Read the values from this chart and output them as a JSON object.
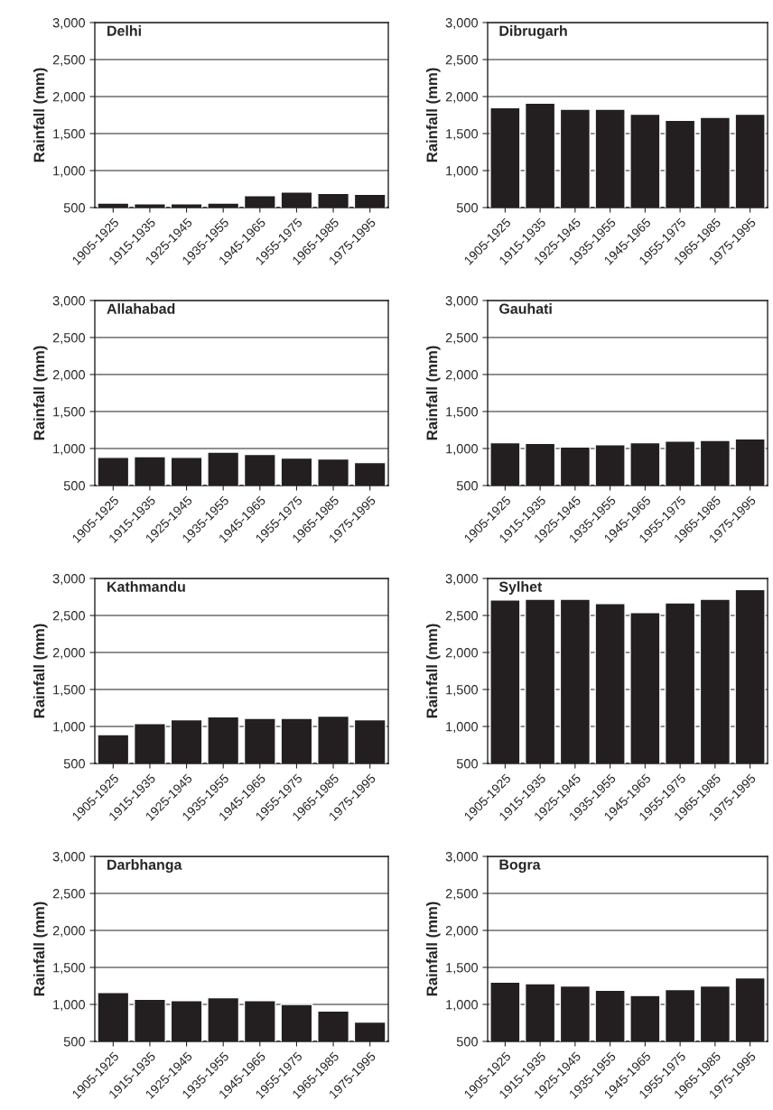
{
  "chart_data": [
    {
      "type": "bar",
      "title": "Delhi",
      "ylabel": "Rainfall (mm)",
      "categories": [
        "1905-1925",
        "1915-1935",
        "1925-1945",
        "1935-1955",
        "1945-1965",
        "1955-1975",
        "1965-1985",
        "1975-1995"
      ],
      "values": [
        560,
        550,
        550,
        560,
        660,
        710,
        690,
        680
      ],
      "color": "#231f20",
      "ylim": [
        500,
        3000
      ],
      "yticks": [
        {
          "value": 500,
          "label": "500"
        },
        {
          "value": 1000,
          "label": "1,000"
        },
        {
          "value": 1500,
          "label": "1,500"
        },
        {
          "value": 2000,
          "label": "2,000"
        },
        {
          "value": 2500,
          "label": "2,500"
        },
        {
          "value": 3000,
          "label": "3,000"
        }
      ],
      "grid": "y"
    },
    {
      "type": "bar",
      "title": "Dibrugarh",
      "ylabel": "Rainfall (mm)",
      "categories": [
        "1905-1925",
        "1915-1935",
        "1925-1945",
        "1935-1955",
        "1945-1965",
        "1955-1975",
        "1965-1985",
        "1975-1995"
      ],
      "values": [
        1850,
        1910,
        1830,
        1830,
        1760,
        1680,
        1720,
        1760
      ],
      "color": "#231f20",
      "ylim": [
        500,
        3000
      ],
      "yticks": [
        {
          "value": 500,
          "label": "500"
        },
        {
          "value": 1000,
          "label": "1,000"
        },
        {
          "value": 1500,
          "label": "1,500"
        },
        {
          "value": 2000,
          "label": "2,000"
        },
        {
          "value": 2500,
          "label": "2,500"
        },
        {
          "value": 3000,
          "label": "3,000"
        }
      ],
      "grid": "y"
    },
    {
      "type": "bar",
      "title": "Allahabad",
      "ylabel": "Rainfall (mm)",
      "categories": [
        "1905-1925",
        "1915-1935",
        "1925-1945",
        "1935-1955",
        "1945-1965",
        "1955-1975",
        "1965-1985",
        "1975-1995"
      ],
      "values": [
        880,
        890,
        880,
        950,
        920,
        870,
        860,
        810
      ],
      "color": "#231f20",
      "ylim": [
        500,
        3000
      ],
      "yticks": [
        {
          "value": 500,
          "label": "500"
        },
        {
          "value": 1000,
          "label": "1,000"
        },
        {
          "value": 1500,
          "label": "1,500"
        },
        {
          "value": 2000,
          "label": "2,000"
        },
        {
          "value": 2500,
          "label": "2,500"
        },
        {
          "value": 3000,
          "label": "3,000"
        }
      ],
      "grid": "y"
    },
    {
      "type": "bar",
      "title": "Gauhati",
      "ylabel": "Rainfall (mm)",
      "categories": [
        "1905-1925",
        "1915-1935",
        "1925-1945",
        "1935-1955",
        "1945-1965",
        "1955-1975",
        "1965-1985",
        "1975-1995"
      ],
      "values": [
        1080,
        1070,
        1020,
        1050,
        1080,
        1100,
        1110,
        1130
      ],
      "color": "#231f20",
      "ylim": [
        500,
        3000
      ],
      "yticks": [
        {
          "value": 500,
          "label": "500"
        },
        {
          "value": 1000,
          "label": "1,000"
        },
        {
          "value": 1500,
          "label": "1,500"
        },
        {
          "value": 2000,
          "label": "2,000"
        },
        {
          "value": 2500,
          "label": "2,500"
        },
        {
          "value": 3000,
          "label": "3,000"
        }
      ],
      "grid": "y"
    },
    {
      "type": "bar",
      "title": "Kathmandu",
      "ylabel": "Rainfall (mm)",
      "categories": [
        "1905-1925",
        "1915-1935",
        "1925-1945",
        "1935-1955",
        "1945-1965",
        "1955-1975",
        "1965-1985",
        "1975-1995"
      ],
      "values": [
        890,
        1040,
        1090,
        1130,
        1110,
        1110,
        1140,
        1090
      ],
      "color": "#231f20",
      "ylim": [
        500,
        3000
      ],
      "yticks": [
        {
          "value": 500,
          "label": "500"
        },
        {
          "value": 1000,
          "label": "1,000"
        },
        {
          "value": 1500,
          "label": "1,500"
        },
        {
          "value": 2000,
          "label": "2,000"
        },
        {
          "value": 2500,
          "label": "2,500"
        },
        {
          "value": 3000,
          "label": "3,000"
        }
      ],
      "grid": "y"
    },
    {
      "type": "bar",
      "title": "Sylhet",
      "ylabel": "Rainfall (mm)",
      "categories": [
        "1905-1925",
        "1915-1935",
        "1925-1945",
        "1935-1955",
        "1945-1965",
        "1955-1975",
        "1965-1985",
        "1975-1995"
      ],
      "values": [
        2710,
        2720,
        2720,
        2660,
        2540,
        2670,
        2720,
        2850
      ],
      "color": "#231f20",
      "ylim": [
        500,
        3000
      ],
      "yticks": [
        {
          "value": 500,
          "label": "500"
        },
        {
          "value": 1000,
          "label": "1,000"
        },
        {
          "value": 1500,
          "label": "1,500"
        },
        {
          "value": 2000,
          "label": "2,000"
        },
        {
          "value": 2500,
          "label": "2,500"
        },
        {
          "value": 3000,
          "label": "3,000"
        }
      ],
      "grid": "y"
    },
    {
      "type": "bar",
      "title": "Darbhanga",
      "ylabel": "Rainfall (mm)",
      "categories": [
        "1905-1925",
        "1915-1935",
        "1925-1945",
        "1935-1955",
        "1945-1965",
        "1955-1975",
        "1965-1985",
        "1975-1995"
      ],
      "values": [
        1160,
        1070,
        1050,
        1090,
        1050,
        1000,
        910,
        760
      ],
      "color": "#231f20",
      "ylim": [
        500,
        3000
      ],
      "yticks": [
        {
          "value": 500,
          "label": "500"
        },
        {
          "value": 1000,
          "label": "1,000"
        },
        {
          "value": 1500,
          "label": "1,500"
        },
        {
          "value": 2000,
          "label": "2,000"
        },
        {
          "value": 2500,
          "label": "2,500"
        },
        {
          "value": 3000,
          "label": "3,000"
        }
      ],
      "grid": "y"
    },
    {
      "type": "bar",
      "title": "Bogra",
      "ylabel": "Rainfall (mm)",
      "categories": [
        "1905-1925",
        "1915-1935",
        "1925-1945",
        "1935-1955",
        "1945-1965",
        "1955-1975",
        "1965-1985",
        "1975-1995"
      ],
      "values": [
        1300,
        1280,
        1250,
        1190,
        1120,
        1200,
        1250,
        1360
      ],
      "color": "#231f20",
      "ylim": [
        500,
        3000
      ],
      "yticks": [
        {
          "value": 500,
          "label": "500"
        },
        {
          "value": 1000,
          "label": "1,000"
        },
        {
          "value": 1500,
          "label": "1,500"
        },
        {
          "value": 2000,
          "label": "2,000"
        },
        {
          "value": 2500,
          "label": "2,500"
        },
        {
          "value": 3000,
          "label": "3,000"
        }
      ],
      "grid": "y"
    }
  ]
}
